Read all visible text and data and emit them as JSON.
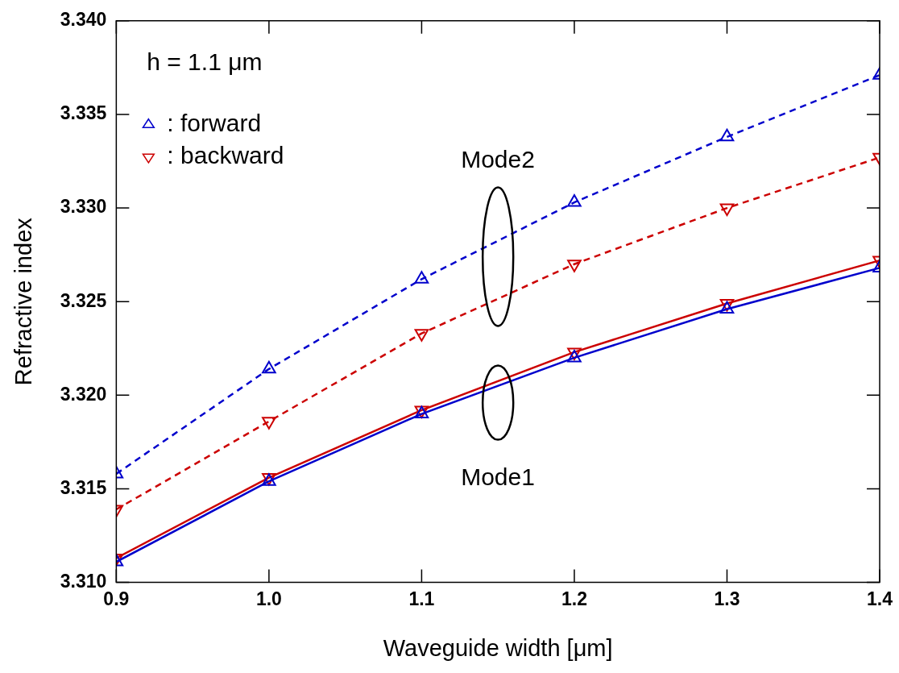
{
  "chart_data": {
    "type": "line",
    "xlabel": "Waveguide width [μm]",
    "ylabel": "Refractive index",
    "x": [
      0.9,
      1.0,
      1.1,
      1.2,
      1.3,
      1.4
    ],
    "series": [
      {
        "name": ": forward",
        "color": "#0000cc",
        "marker": "triangle",
        "line_style": "dashed",
        "values": [
          3.3158,
          3.3214,
          3.3262,
          3.3303,
          3.3338,
          3.3371
        ]
      },
      {
        "name": ": backward",
        "color": "#cc0000",
        "marker": "triangle-down",
        "line_style": "dashed",
        "values": [
          3.3139,
          3.3186,
          3.3233,
          3.327,
          3.33,
          3.3327
        ]
      },
      {
        "color": "#0000cc",
        "marker": "triangle",
        "line_style": "solid",
        "values": [
          3.3111,
          3.3154,
          3.319,
          3.322,
          3.3246,
          3.3268
        ]
      },
      {
        "color": "#cc0000",
        "marker": "triangle-down",
        "line_style": "solid",
        "values": [
          3.3113,
          3.3156,
          3.3192,
          3.3223,
          3.3249,
          3.3272
        ]
      }
    ],
    "xlim": [
      0.9,
      1.4
    ],
    "xticks": [
      {
        "value": 0.9,
        "label": "0.9"
      },
      {
        "value": 1.0,
        "label": "1.0"
      },
      {
        "value": 1.1,
        "label": "1.1"
      },
      {
        "value": 1.2,
        "label": "1.2"
      },
      {
        "value": 1.3,
        "label": "1.3"
      },
      {
        "value": 1.4,
        "label": "1.4"
      }
    ],
    "ylim": [
      3.31,
      3.34
    ],
    "yticks": [
      {
        "value": 3.31,
        "label": "3.310"
      },
      {
        "value": 3.315,
        "label": "3.315"
      },
      {
        "value": 3.32,
        "label": "3.320"
      },
      {
        "value": 3.325,
        "label": "3.325"
      },
      {
        "value": 3.33,
        "label": "3.330"
      },
      {
        "value": 3.335,
        "label": "3.335"
      },
      {
        "value": 3.34,
        "label": "3.340"
      }
    ],
    "grid": false,
    "legend": "top left",
    "annotations": [
      "h = 1.1 μm",
      "Mode2",
      "Mode1"
    ]
  }
}
